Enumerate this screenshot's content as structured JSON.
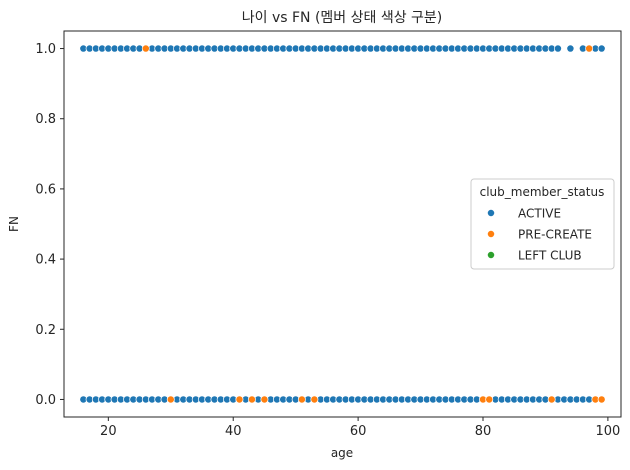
{
  "chart_data": {
    "type": "scatter",
    "title": "나이 vs FN (멤버 상태 색상 구분)",
    "xlabel": "age",
    "ylabel": "FN",
    "xlim": [
      12.9,
      102.1
    ],
    "ylim": [
      -0.05,
      1.05
    ],
    "xticks": [
      20,
      40,
      60,
      80,
      100
    ],
    "yticks": [
      0.0,
      0.2,
      0.4,
      0.6,
      0.8,
      1.0
    ],
    "grid": false,
    "legend": {
      "title": "club_member_status",
      "placement": "center-right",
      "entries": [
        "ACTIVE",
        "PRE-CREATE",
        "LEFT CLUB"
      ]
    },
    "series": [
      {
        "name": "ACTIVE",
        "color": "#1f77b4",
        "points": [
          [
            16,
            1
          ],
          [
            17,
            1
          ],
          [
            18,
            1
          ],
          [
            19,
            1
          ],
          [
            20,
            1
          ],
          [
            21,
            1
          ],
          [
            22,
            1
          ],
          [
            23,
            1
          ],
          [
            24,
            1
          ],
          [
            25,
            1
          ],
          [
            27,
            1
          ],
          [
            28,
            1
          ],
          [
            29,
            1
          ],
          [
            30,
            1
          ],
          [
            31,
            1
          ],
          [
            32,
            1
          ],
          [
            33,
            1
          ],
          [
            34,
            1
          ],
          [
            35,
            1
          ],
          [
            36,
            1
          ],
          [
            37,
            1
          ],
          [
            38,
            1
          ],
          [
            39,
            1
          ],
          [
            40,
            1
          ],
          [
            41,
            1
          ],
          [
            42,
            1
          ],
          [
            43,
            1
          ],
          [
            44,
            1
          ],
          [
            45,
            1
          ],
          [
            46,
            1
          ],
          [
            47,
            1
          ],
          [
            48,
            1
          ],
          [
            49,
            1
          ],
          [
            50,
            1
          ],
          [
            51,
            1
          ],
          [
            52,
            1
          ],
          [
            53,
            1
          ],
          [
            54,
            1
          ],
          [
            55,
            1
          ],
          [
            56,
            1
          ],
          [
            57,
            1
          ],
          [
            58,
            1
          ],
          [
            59,
            1
          ],
          [
            60,
            1
          ],
          [
            61,
            1
          ],
          [
            62,
            1
          ],
          [
            63,
            1
          ],
          [
            64,
            1
          ],
          [
            65,
            1
          ],
          [
            66,
            1
          ],
          [
            67,
            1
          ],
          [
            68,
            1
          ],
          [
            69,
            1
          ],
          [
            70,
            1
          ],
          [
            71,
            1
          ],
          [
            72,
            1
          ],
          [
            73,
            1
          ],
          [
            74,
            1
          ],
          [
            75,
            1
          ],
          [
            76,
            1
          ],
          [
            77,
            1
          ],
          [
            78,
            1
          ],
          [
            79,
            1
          ],
          [
            80,
            1
          ],
          [
            81,
            1
          ],
          [
            82,
            1
          ],
          [
            83,
            1
          ],
          [
            84,
            1
          ],
          [
            85,
            1
          ],
          [
            86,
            1
          ],
          [
            87,
            1
          ],
          [
            88,
            1
          ],
          [
            89,
            1
          ],
          [
            90,
            1
          ],
          [
            91,
            1
          ],
          [
            92,
            1
          ],
          [
            94,
            1
          ],
          [
            96,
            1
          ],
          [
            98,
            1
          ],
          [
            99,
            1
          ],
          [
            16,
            0
          ],
          [
            17,
            0
          ],
          [
            18,
            0
          ],
          [
            19,
            0
          ],
          [
            20,
            0
          ],
          [
            21,
            0
          ],
          [
            22,
            0
          ],
          [
            23,
            0
          ],
          [
            24,
            0
          ],
          [
            25,
            0
          ],
          [
            26,
            0
          ],
          [
            27,
            0
          ],
          [
            28,
            0
          ],
          [
            29,
            0
          ],
          [
            31,
            0
          ],
          [
            32,
            0
          ],
          [
            33,
            0
          ],
          [
            34,
            0
          ],
          [
            35,
            0
          ],
          [
            36,
            0
          ],
          [
            37,
            0
          ],
          [
            38,
            0
          ],
          [
            39,
            0
          ],
          [
            40,
            0
          ],
          [
            41,
            0
          ],
          [
            42,
            0
          ],
          [
            44,
            0
          ],
          [
            46,
            0
          ],
          [
            47,
            0
          ],
          [
            48,
            0
          ],
          [
            49,
            0
          ],
          [
            50,
            0
          ],
          [
            52,
            0
          ],
          [
            54,
            0
          ],
          [
            55,
            0
          ],
          [
            56,
            0
          ],
          [
            57,
            0
          ],
          [
            58,
            0
          ],
          [
            59,
            0
          ],
          [
            60,
            0
          ],
          [
            61,
            0
          ],
          [
            62,
            0
          ],
          [
            63,
            0
          ],
          [
            64,
            0
          ],
          [
            65,
            0
          ],
          [
            66,
            0
          ],
          [
            67,
            0
          ],
          [
            68,
            0
          ],
          [
            69,
            0
          ],
          [
            70,
            0
          ],
          [
            71,
            0
          ],
          [
            72,
            0
          ],
          [
            73,
            0
          ],
          [
            74,
            0
          ],
          [
            75,
            0
          ],
          [
            76,
            0
          ],
          [
            77,
            0
          ],
          [
            78,
            0
          ],
          [
            79,
            0
          ],
          [
            82,
            0
          ],
          [
            83,
            0
          ],
          [
            84,
            0
          ],
          [
            85,
            0
          ],
          [
            86,
            0
          ],
          [
            87,
            0
          ],
          [
            88,
            0
          ],
          [
            89,
            0
          ],
          [
            90,
            0
          ],
          [
            92,
            0
          ],
          [
            93,
            0
          ],
          [
            94,
            0
          ],
          [
            95,
            0
          ],
          [
            96,
            0
          ],
          [
            97,
            0
          ]
        ]
      },
      {
        "name": "PRE-CREATE",
        "color": "#ff7f0e",
        "points": [
          [
            26,
            1
          ],
          [
            97,
            1
          ],
          [
            30,
            0
          ],
          [
            41,
            0
          ],
          [
            43,
            0
          ],
          [
            45,
            0
          ],
          [
            51,
            0
          ],
          [
            53,
            0
          ],
          [
            80,
            0
          ],
          [
            81,
            0
          ],
          [
            91,
            0
          ],
          [
            98,
            0
          ],
          [
            99,
            0
          ]
        ]
      },
      {
        "name": "LEFT CLUB",
        "color": "#2ca02c",
        "points": []
      }
    ]
  }
}
